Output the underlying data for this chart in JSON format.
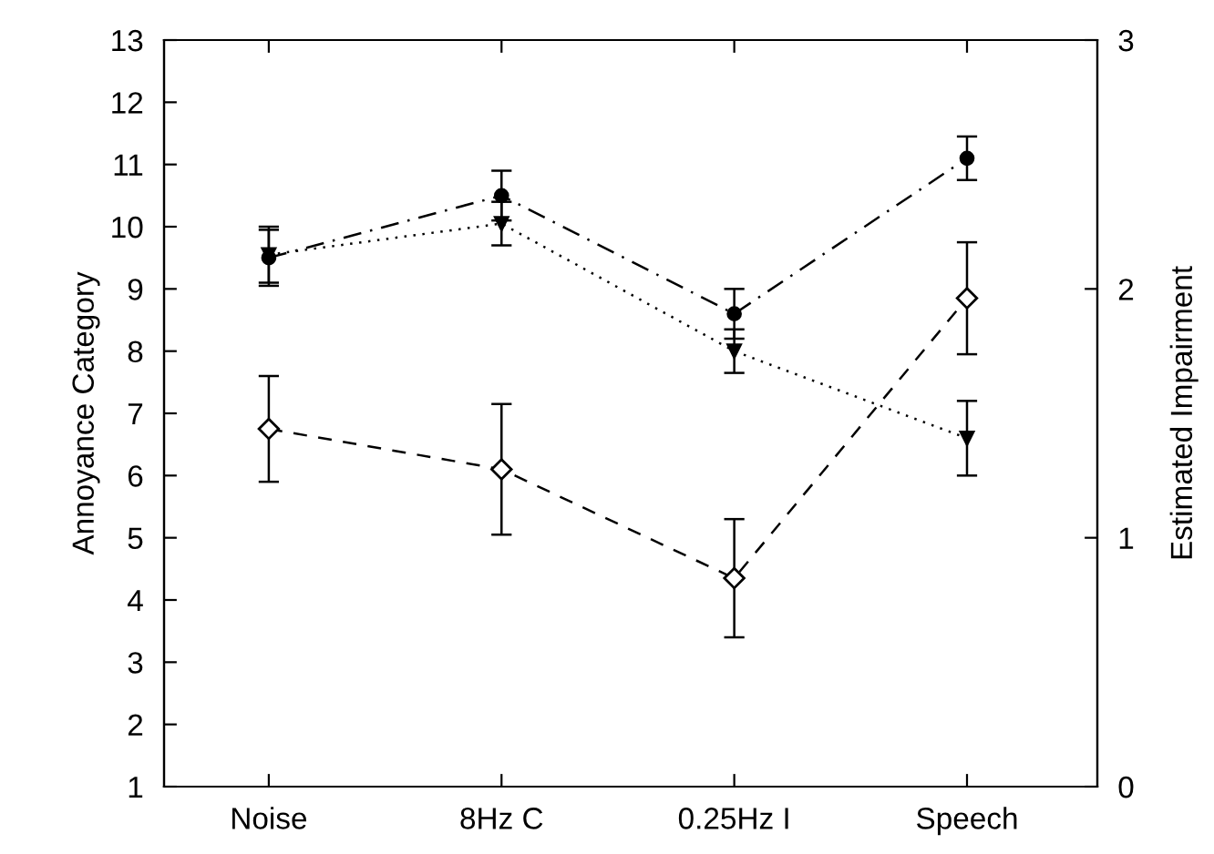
{
  "chart_data": {
    "type": "line",
    "ylabel": "Annoyance Category",
    "y2label": "Estimated Impairment",
    "categories": [
      "Noise",
      "8Hz C",
      "0.25Hz I",
      "Speech"
    ],
    "ylim": [
      1,
      13
    ],
    "yticks": [
      1,
      2,
      3,
      4,
      5,
      6,
      7,
      8,
      9,
      10,
      11,
      12,
      13
    ],
    "y2lim": [
      0,
      3
    ],
    "y2ticks": [
      0,
      1,
      2,
      3
    ],
    "grid": false,
    "legend": false,
    "series": [
      {
        "color": "#000000",
        "marker": "circle",
        "line_style": "dashdot",
        "values": [
          9.5,
          10.5,
          8.6,
          11.1
        ],
        "errors": [
          0.45,
          0.4,
          0.4,
          0.35
        ]
      },
      {
        "color": "#000000",
        "marker": "triangle",
        "line_style": "dotted",
        "values": [
          9.55,
          10.05,
          8.0,
          6.6
        ],
        "errors": [
          0.45,
          0.35,
          0.35,
          0.6
        ]
      },
      {
        "color": "#000000",
        "marker": "diamond",
        "line_style": "dashed",
        "values": [
          6.75,
          6.1,
          4.35,
          8.85
        ],
        "errors": [
          0.85,
          1.05,
          0.95,
          0.9
        ]
      }
    ]
  }
}
